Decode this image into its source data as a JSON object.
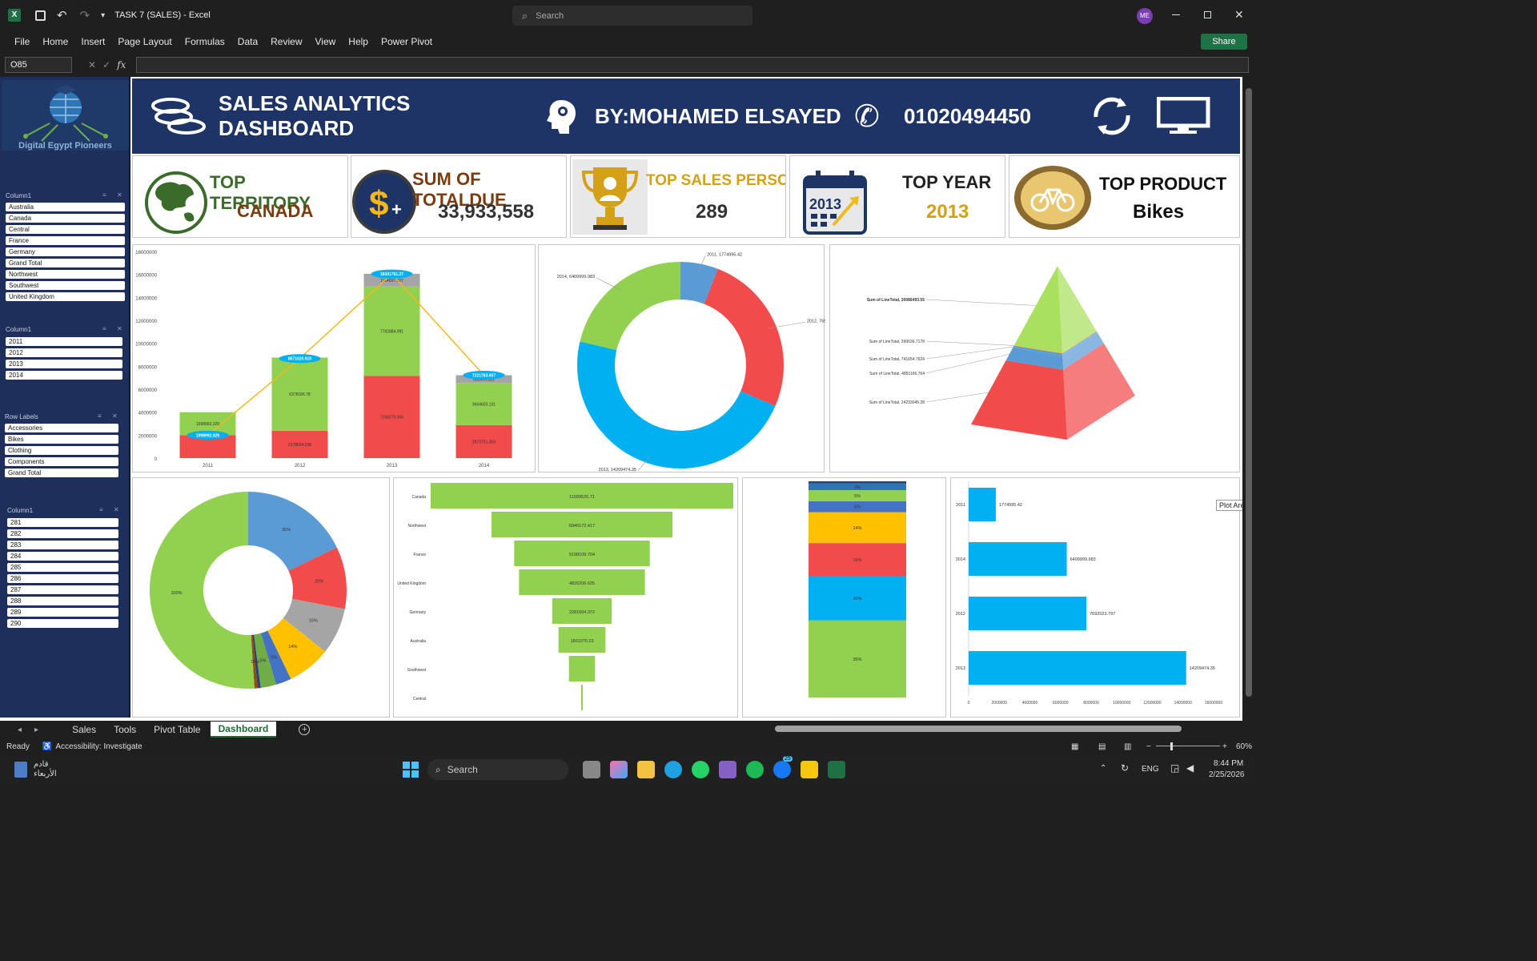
{
  "window": {
    "title": "TASK 7 (SALES)  -  Excel",
    "search_placeholder": "Search",
    "user_initials": "ME",
    "share": "Share"
  },
  "ribbon": {
    "tabs": [
      "File",
      "Home",
      "Insert",
      "Page Layout",
      "Formulas",
      "Data",
      "Review",
      "View",
      "Help",
      "Power Pivot"
    ]
  },
  "formula_bar": {
    "name_box": "O85",
    "fx": "fx",
    "formula": ""
  },
  "header": {
    "title": "SALES ANALYTICS DASHBOARD",
    "author": "BY:MOHAMED ELSAYED",
    "phone": "01020494450",
    "logo_text": "Digital Egypt Pioneers"
  },
  "kpis": [
    {
      "title": "TOP TERRITORY",
      "value": "CANADA"
    },
    {
      "title": "SUM OF TOTALDUE",
      "value": "33,933,558"
    },
    {
      "title": "TOP SALES PERSONL",
      "value": "289"
    },
    {
      "title": "TOP YEAR",
      "value": "2013",
      "badge": "2013"
    },
    {
      "title": "TOP PRODUCT",
      "value": "Bikes"
    }
  ],
  "slicers": [
    {
      "title": "Column1",
      "items": [
        "Australia",
        "Canada",
        "Central",
        "France",
        "Germany",
        "Grand Total",
        "Northwest",
        "Southwest",
        "United Kingdom"
      ]
    },
    {
      "title": "Column1",
      "items": [
        "2011",
        "2012",
        "2013",
        "2014"
      ]
    },
    {
      "title": "Row Labels",
      "items": [
        "Accessories",
        "Bikes",
        "Clothing",
        "Components",
        "Grand Total"
      ]
    },
    {
      "title": "Column1",
      "items": [
        "281",
        "282",
        "283",
        "284",
        "285",
        "286",
        "287",
        "288",
        "289",
        "290"
      ]
    }
  ],
  "tooltip": "Plot Area",
  "sheet_tabs": [
    "Sales",
    "Tools",
    "Pivot Table",
    "Dashboard"
  ],
  "active_sheet": "Dashboard",
  "status": {
    "ready": "Ready",
    "accessibility": "Accessibility: Investigate",
    "zoom": "60%"
  },
  "taskbar": {
    "weather": "قادم",
    "weather_day": "الأربعاء",
    "search": "Search",
    "lang": "ENG",
    "time": "8:44 PM",
    "date": "2/25/2026",
    "badge": "25"
  },
  "chart_data": [
    {
      "type": "bar",
      "title": "",
      "categories": [
        "2011",
        "2012",
        "2013",
        "2014"
      ],
      "series": [
        {
          "values": [
            1998992.329,
            2378834.238,
            7158270.349,
            2873751.303
          ],
          "color": "#f24b4b"
        },
        {
          "values": [
            1998992.329,
            6378186.78,
            7782884.991,
            3664603.131
          ],
          "color": "#92d050"
        },
        {
          "values": [
            0,
            0,
            1114697.907,
            683470.323
          ],
          "color": "#a5a5a5"
        }
      ],
      "line": {
        "values": [
          1998992.329,
          8671020.919,
          16041761.27,
          7221783.657
        ],
        "labels": [
          "1998992.329",
          "8671020.919",
          "16041761.27",
          "7221783.657"
        ],
        "color": "#f2b91c"
      },
      "data_labels": [
        [
          "",
          "2378834.238",
          "7158270.349",
          "2873751.303"
        ],
        [
          "1998992.329",
          "6378186.78",
          "7782884.991",
          "3664603.131"
        ],
        [
          "",
          "",
          "1114697.907",
          "683470.323"
        ]
      ],
      "yticks": [
        "0",
        "2000000",
        "4000000",
        "6000000",
        "8000000",
        "10000000",
        "12000000",
        "14000000",
        "16000000",
        "18000000"
      ],
      "ylim": [
        0,
        18000000
      ]
    },
    {
      "type": "pie",
      "title": "",
      "slices": [
        {
          "label": "2011, 1774995.42",
          "value": 1774995.42,
          "color": "#5b9bd5"
        },
        {
          "label": "2012, 7692023.797",
          "value": 7692023.797,
          "color": "#f24b4b"
        },
        {
          "label": "2013, 14209474.35",
          "value": 14209474.35,
          "color": "#00b0f0"
        },
        {
          "label": "2014, 6409999.983",
          "value": 6409999.983,
          "color": "#92d050"
        }
      ]
    },
    {
      "type": "area",
      "title": "",
      "layers": [
        {
          "label": "Sum of LineTotal, 30086493.55",
          "value": 30086493.55,
          "color": "#a9e060"
        },
        {
          "label": "Sum of LineTotal, 260636.7178",
          "value": 260636.7178,
          "color": "#f2b91c"
        },
        {
          "label": "Sum of LineTotal, 741654.7924",
          "value": 741654.7924,
          "color": "#5b9bd5"
        },
        {
          "label": "Sum of LineTotal, 4851166.764",
          "value": 4851166.764,
          "color": "#5b9bd5"
        },
        {
          "label": "Sum of LineTotal, 24233045.28",
          "value": 24233045.28,
          "color": "#f24b4b"
        }
      ]
    },
    {
      "type": "pie",
      "title": "",
      "slices": [
        {
          "label": "35%",
          "value": 35,
          "color": "#5b9bd5"
        },
        {
          "label": "20%",
          "value": 20,
          "color": "#f24b4b"
        },
        {
          "label": "15%",
          "value": 15,
          "color": "#a5a5a5"
        },
        {
          "label": "14%",
          "value": 14,
          "color": "#ffc000"
        },
        {
          "label": "5%",
          "value": 5,
          "color": "#4472c4"
        },
        {
          "label": "5%",
          "value": 5,
          "color": "#70ad47"
        },
        {
          "label": "1%",
          "value": 1,
          "color": "#264478"
        },
        {
          "label": "1%",
          "value": 1,
          "color": "#9e480e"
        },
        {
          "label": "100%",
          "value": 100,
          "color": "#92d050"
        }
      ]
    },
    {
      "type": "bar",
      "title": "",
      "orientation": "funnel",
      "categories": [
        "Canada",
        "Northwest",
        "France",
        "United Kingdom",
        "Germany",
        "Australia",
        "Southwest",
        "Central"
      ],
      "values": [
        11599526.71,
        6940172.417,
        5198109.704,
        4826206.635,
        2281604.372,
        1801970.23,
        1000000,
        20000
      ],
      "labels": [
        "11599526.71",
        "6940172.417",
        "5198109.704",
        "4826206.635",
        "2281604.372",
        "1801970.23",
        "",
        ""
      ],
      "color": "#92d050"
    },
    {
      "type": "bar",
      "title": "",
      "orientation": "stacked-100",
      "segments": [
        {
          "label": "35%",
          "value": 35,
          "color": "#92d050"
        },
        {
          "label": "20%",
          "value": 20,
          "color": "#00b0f0"
        },
        {
          "label": "15%",
          "value": 15,
          "color": "#f24b4b"
        },
        {
          "label": "14%",
          "value": 14,
          "color": "#ffc000"
        },
        {
          "label": "5%",
          "value": 5,
          "color": "#4472c4"
        },
        {
          "label": "5%",
          "value": 5,
          "color": "#92d050"
        },
        {
          "label": "3%",
          "value": 3,
          "color": "#2e75b6"
        },
        {
          "label": "",
          "value": 1,
          "color": "#264478"
        }
      ]
    },
    {
      "type": "bar",
      "title": "",
      "orientation": "horizontal",
      "categories": [
        "2011",
        "2014",
        "2012",
        "2013"
      ],
      "values": [
        1774995.42,
        6409999.983,
        7692023.797,
        14209474.35
      ],
      "labels": [
        "1774995.42",
        "6409999.983",
        "7692023.797",
        "14209474.35"
      ],
      "xticks": [
        "0",
        "2000000",
        "4000000",
        "6000000",
        "8000000",
        "10000000",
        "12000000",
        "14000000",
        "16000000"
      ],
      "xlim": [
        0,
        16000000
      ],
      "color": "#00b0f0"
    }
  ]
}
